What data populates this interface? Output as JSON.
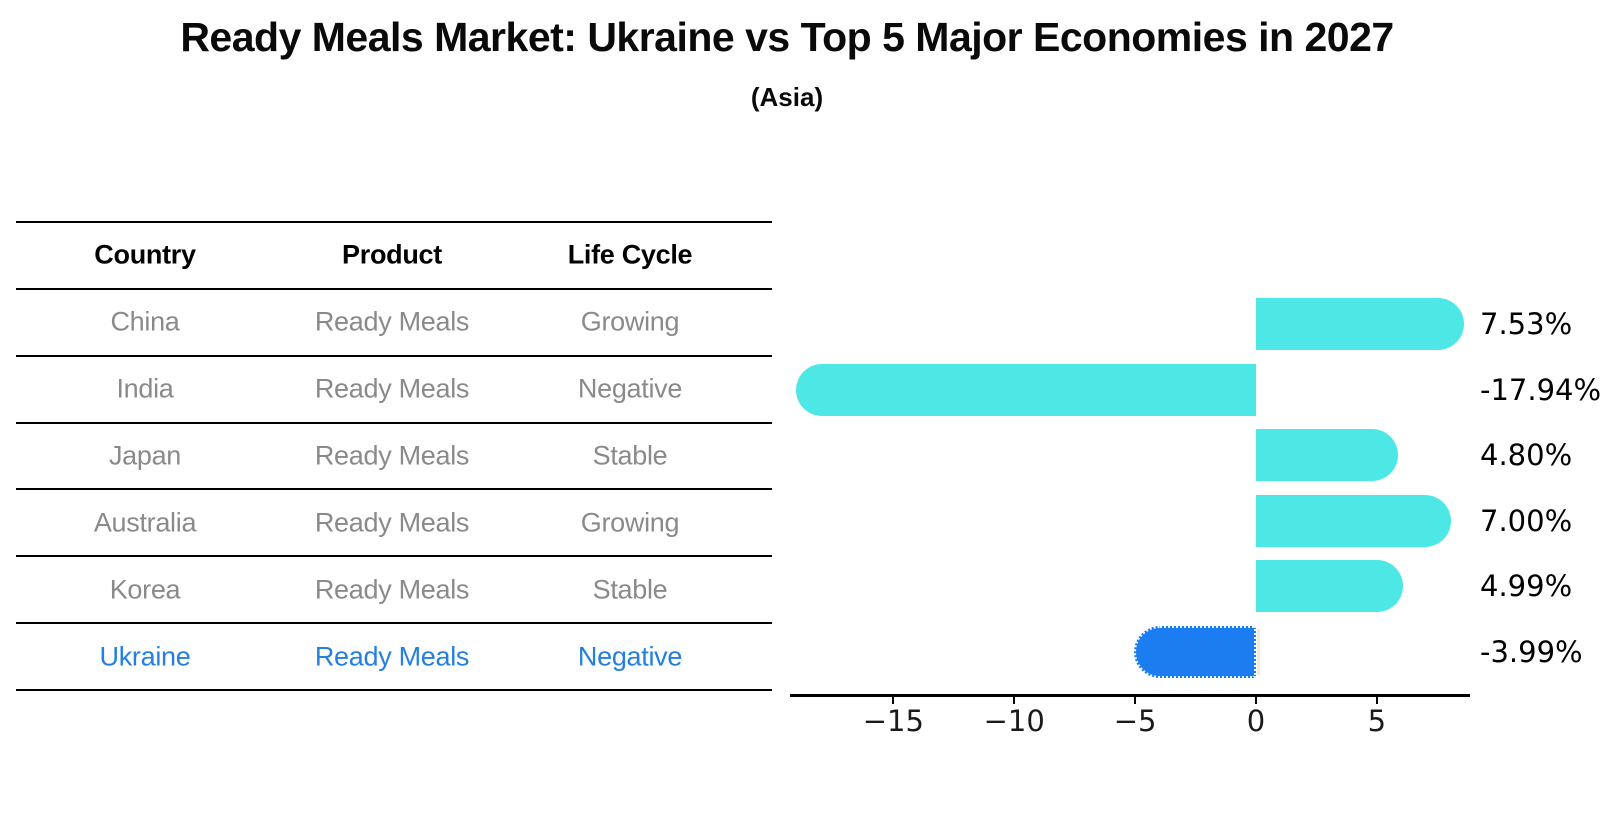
{
  "title": "Ready Meals Market: Ukraine vs Top 5 Major Economies in 2027",
  "subtitle": "(Asia)",
  "table": {
    "headers": [
      "Country",
      "Product",
      "Life Cycle"
    ],
    "rows": [
      {
        "country": "China",
        "product": "Ready Meals",
        "life_cycle": "Growing",
        "highlight": false
      },
      {
        "country": "India",
        "product": "Ready Meals",
        "life_cycle": "Negative",
        "highlight": false
      },
      {
        "country": "Japan",
        "product": "Ready Meals",
        "life_cycle": "Stable",
        "highlight": false
      },
      {
        "country": "Australia",
        "product": "Ready Meals",
        "life_cycle": "Growing",
        "highlight": false
      },
      {
        "country": "Korea",
        "product": "Ready Meals",
        "life_cycle": "Stable",
        "highlight": false
      },
      {
        "country": "Ukraine",
        "product": "Ready Meals",
        "life_cycle": "Negative",
        "highlight": true
      }
    ]
  },
  "chart_data": {
    "type": "bar",
    "orientation": "horizontal",
    "title": "Ready Meals Market: Ukraine vs Top 5 Major Economies in 2027",
    "subtitle": "(Asia)",
    "categories": [
      "China",
      "India",
      "Japan",
      "Australia",
      "Korea",
      "Ukraine"
    ],
    "values": [
      7.53,
      -17.94,
      4.8,
      7.0,
      4.99,
      -3.99
    ],
    "value_labels": [
      "7.53%",
      "-17.94%",
      "4.80%",
      "7.00%",
      "4.99%",
      "-3.99%"
    ],
    "units": "percent",
    "x_ticks": [
      -15,
      -10,
      -5,
      0,
      5
    ],
    "x_tick_labels": [
      "−15",
      "−10",
      "−5",
      "0",
      "5"
    ],
    "xlim": [
      -19.2,
      8.85
    ],
    "grid": false,
    "legend": false,
    "bar_color": "#4de8e6",
    "highlight_bar_color": "#1b7df0",
    "highlight_border_color": "#e9f6ff",
    "highlight_text_color": "#2380e0",
    "highlight_index": 5
  }
}
